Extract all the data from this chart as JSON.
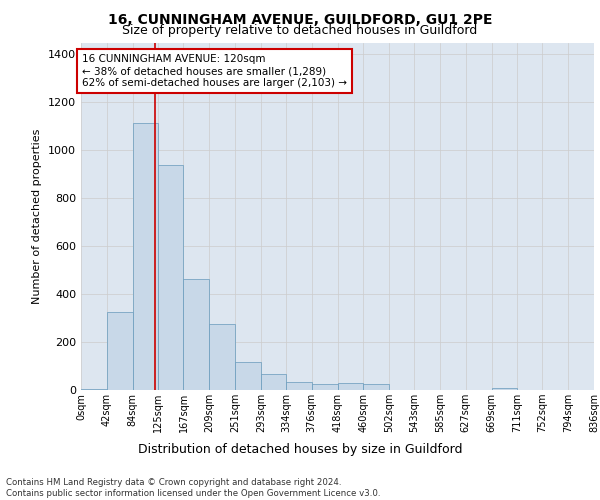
{
  "title1": "16, CUNNINGHAM AVENUE, GUILDFORD, GU1 2PE",
  "title2": "Size of property relative to detached houses in Guildford",
  "xlabel": "Distribution of detached houses by size in Guildford",
  "ylabel": "Number of detached properties",
  "footnote": "Contains HM Land Registry data © Crown copyright and database right 2024.\nContains public sector information licensed under the Open Government Licence v3.0.",
  "bar_values": [
    5,
    327,
    1113,
    940,
    462,
    275,
    115,
    68,
    35,
    27,
    30,
    26,
    0,
    0,
    0,
    0,
    10,
    0,
    0,
    0
  ],
  "bin_edges": [
    0,
    42,
    84,
    125,
    167,
    209,
    251,
    293,
    334,
    376,
    418,
    460,
    502,
    543,
    585,
    627,
    669,
    711,
    752,
    794,
    836
  ],
  "tick_labels": [
    "0sqm",
    "42sqm",
    "84sqm",
    "125sqm",
    "167sqm",
    "209sqm",
    "251sqm",
    "293sqm",
    "334sqm",
    "376sqm",
    "418sqm",
    "460sqm",
    "502sqm",
    "543sqm",
    "585sqm",
    "627sqm",
    "669sqm",
    "711sqm",
    "752sqm",
    "794sqm",
    "836sqm"
  ],
  "bar_color": "#c8d8e8",
  "bar_edge_color": "#6699bb",
  "grid_color": "#cccccc",
  "background_color": "#dde6f0",
  "property_size": 120,
  "annotation_text": "16 CUNNINGHAM AVENUE: 120sqm\n← 38% of detached houses are smaller (1,289)\n62% of semi-detached houses are larger (2,103) →",
  "vline_color": "#cc0000",
  "annotation_box_edge": "#cc0000",
  "ylim": [
    0,
    1450
  ],
  "yticks": [
    0,
    200,
    400,
    600,
    800,
    1000,
    1200,
    1400
  ]
}
